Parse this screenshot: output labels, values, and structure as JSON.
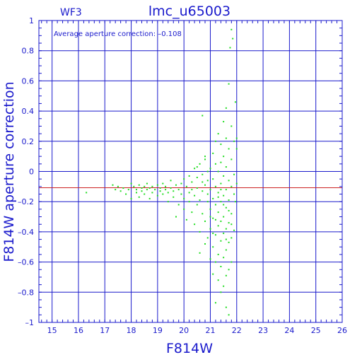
{
  "chart_data": {
    "type": "scatter",
    "title": "lmc_u65003",
    "subtitle": "WF3",
    "annotation": "Average aperture correction: –0.108",
    "xlabel": "F814W",
    "ylabel": "F814W aperture correction",
    "xlim": [
      14.5,
      26
    ],
    "ylim": [
      -1,
      1
    ],
    "x_ticks": [
      15,
      16,
      17,
      18,
      19,
      20,
      21,
      22,
      23,
      24,
      25,
      26
    ],
    "x_tick_labels": [
      "15",
      "16",
      "17",
      "18",
      "19",
      "20",
      "21",
      "22",
      "23",
      "24",
      "25",
      "26"
    ],
    "y_ticks": [
      1,
      0.8,
      0.6,
      0.4,
      0.2,
      0,
      -0.2,
      -0.4,
      -0.6,
      -0.8,
      -1
    ],
    "y_tick_labels": [
      "1",
      "0.8",
      "0.6",
      "0.4",
      "0.2",
      "0",
      "–0.2",
      "–0.4",
      "–0.6",
      "–0.8",
      "–1"
    ],
    "grid": true,
    "reference_line": {
      "y": -0.108,
      "color": "#cc2222"
    },
    "point_color": "#22dd22",
    "axis_color": "#1a1acc",
    "series": [
      {
        "points": [
          [
            16.3,
            -0.14
          ],
          [
            17.3,
            -0.09
          ],
          [
            17.4,
            -0.12
          ],
          [
            17.5,
            -0.1
          ],
          [
            17.6,
            -0.13
          ],
          [
            17.7,
            -0.11
          ],
          [
            17.8,
            -0.15
          ],
          [
            17.9,
            -0.12
          ],
          [
            18.0,
            -0.08
          ],
          [
            18.0,
            -0.18
          ],
          [
            18.1,
            -0.1
          ],
          [
            18.2,
            -0.12
          ],
          [
            18.2,
            -0.14
          ],
          [
            18.3,
            -0.09
          ],
          [
            18.3,
            -0.17
          ],
          [
            18.4,
            -0.11
          ],
          [
            18.4,
            -0.13
          ],
          [
            18.5,
            -0.1
          ],
          [
            18.5,
            -0.15
          ],
          [
            18.6,
            -0.12
          ],
          [
            18.6,
            -0.08
          ],
          [
            18.7,
            -0.11
          ],
          [
            18.7,
            -0.18
          ],
          [
            18.8,
            -0.1
          ],
          [
            18.8,
            -0.14
          ],
          [
            18.9,
            -0.12
          ],
          [
            19.0,
            -0.09
          ],
          [
            19.0,
            -0.16
          ],
          [
            19.1,
            -0.13
          ],
          [
            19.1,
            -0.11
          ],
          [
            19.2,
            -0.08
          ],
          [
            19.2,
            -0.15
          ],
          [
            19.3,
            -0.12
          ],
          [
            19.3,
            -0.1
          ],
          [
            19.4,
            -0.14
          ],
          [
            19.4,
            -0.2
          ],
          [
            19.5,
            -0.11
          ],
          [
            19.5,
            -0.06
          ],
          [
            19.6,
            -0.13
          ],
          [
            19.6,
            -0.17
          ],
          [
            19.7,
            -0.09
          ],
          [
            19.7,
            -0.3
          ],
          [
            19.8,
            -0.12
          ],
          [
            19.8,
            -0.22
          ],
          [
            19.9,
            -0.15
          ],
          [
            19.9,
            -0.08
          ],
          [
            20.0,
            -0.05
          ],
          [
            20.0,
            -0.18
          ],
          [
            20.0,
            -0.25
          ],
          [
            20.1,
            -0.1
          ],
          [
            20.1,
            -0.32
          ],
          [
            20.2,
            -0.03
          ],
          [
            20.2,
            -0.14
          ],
          [
            20.2,
            -0.2
          ],
          [
            20.3,
            -0.07
          ],
          [
            20.3,
            -0.27
          ],
          [
            20.3,
            -0.12
          ],
          [
            20.4,
            0.02
          ],
          [
            20.4,
            -0.16
          ],
          [
            20.4,
            -0.35
          ],
          [
            20.5,
            -0.04
          ],
          [
            20.5,
            -0.22
          ],
          [
            20.5,
            -0.11
          ],
          [
            20.6,
            0.05
          ],
          [
            20.6,
            -0.19
          ],
          [
            20.6,
            -0.4
          ],
          [
            20.6,
            -0.54
          ],
          [
            20.7,
            -0.02
          ],
          [
            20.7,
            -0.13
          ],
          [
            20.7,
            -0.28
          ],
          [
            20.8,
            0.08
          ],
          [
            20.8,
            -0.09
          ],
          [
            20.8,
            -0.33
          ],
          [
            20.8,
            -0.48
          ],
          [
            20.9,
            -0.06
          ],
          [
            20.9,
            -0.2
          ],
          [
            20.9,
            -0.15
          ],
          [
            20.9,
            -0.44
          ],
          [
            20.7,
            0.37
          ],
          [
            20.8,
            0.1
          ],
          [
            21.0,
            0.02
          ],
          [
            21.0,
            -0.12
          ],
          [
            21.0,
            -0.25
          ],
          [
            21.0,
            -0.38
          ],
          [
            21.0,
            -0.58
          ],
          [
            21.1,
            0.12
          ],
          [
            21.1,
            -0.05
          ],
          [
            21.1,
            -0.18
          ],
          [
            21.1,
            -0.31
          ],
          [
            21.1,
            -0.5
          ],
          [
            21.1,
            -0.68
          ],
          [
            21.2,
            0.2
          ],
          [
            21.2,
            0.05
          ],
          [
            21.2,
            -0.1
          ],
          [
            21.2,
            -0.22
          ],
          [
            21.2,
            -0.42
          ],
          [
            21.2,
            -0.6
          ],
          [
            21.2,
            -0.87
          ],
          [
            21.3,
            0.25
          ],
          [
            21.3,
            0.0
          ],
          [
            21.3,
            -0.14
          ],
          [
            21.3,
            -0.27
          ],
          [
            21.3,
            -0.36
          ],
          [
            21.3,
            -0.55
          ],
          [
            21.3,
            -0.72
          ],
          [
            21.4,
            0.18
          ],
          [
            21.4,
            0.06
          ],
          [
            21.4,
            -0.08
          ],
          [
            21.4,
            -0.2
          ],
          [
            21.4,
            -0.33
          ],
          [
            21.4,
            -0.46
          ],
          [
            21.4,
            -0.63
          ],
          [
            21.4,
            -0.8
          ],
          [
            21.5,
            0.33
          ],
          [
            21.5,
            0.1
          ],
          [
            21.5,
            -0.03
          ],
          [
            21.5,
            -0.16
          ],
          [
            21.5,
            -0.3
          ],
          [
            21.5,
            -0.41
          ],
          [
            21.5,
            -0.57
          ],
          [
            21.5,
            -0.76
          ],
          [
            21.6,
            0.42
          ],
          [
            21.6,
            0.22
          ],
          [
            21.6,
            0.03
          ],
          [
            21.6,
            -0.12
          ],
          [
            21.6,
            -0.24
          ],
          [
            21.6,
            -0.38
          ],
          [
            21.6,
            -0.52
          ],
          [
            21.6,
            -0.69
          ],
          [
            21.6,
            -0.9
          ],
          [
            21.7,
            0.58
          ],
          [
            21.7,
            0.15
          ],
          [
            21.7,
            -0.06
          ],
          [
            21.7,
            -0.19
          ],
          [
            21.7,
            -0.34
          ],
          [
            21.7,
            -0.47
          ],
          [
            21.7,
            -0.65
          ],
          [
            21.7,
            -0.95
          ],
          [
            21.75,
            0.82
          ],
          [
            21.8,
            0.94
          ],
          [
            21.8,
            0.3
          ],
          [
            21.8,
            0.08
          ],
          [
            21.8,
            -0.1
          ],
          [
            21.8,
            -0.28
          ],
          [
            21.8,
            -0.44
          ],
          [
            21.8,
            -0.6
          ],
          [
            21.85,
            0.88
          ],
          [
            21.9,
            0.2
          ],
          [
            21.9,
            -0.02
          ],
          [
            21.9,
            -0.15
          ],
          [
            21.9,
            -0.39
          ],
          [
            21.95,
            0.46
          ],
          [
            21.95,
            -0.2
          ],
          [
            22.0,
            0.15
          ],
          [
            22.0,
            -0.08
          ],
          [
            22.0,
            0.22
          ],
          [
            20.5,
            0.03
          ],
          [
            20.7,
            -0.07
          ],
          [
            20.9,
            0.0
          ],
          [
            21.0,
            -0.3
          ],
          [
            21.1,
            -0.41
          ],
          [
            21.2,
            -0.32
          ],
          [
            21.3,
            -0.17
          ],
          [
            21.4,
            -0.12
          ],
          [
            21.5,
            -0.22
          ],
          [
            21.6,
            -0.45
          ],
          [
            21.7,
            -0.26
          ],
          [
            21.8,
            -0.35
          ]
        ]
      }
    ]
  }
}
